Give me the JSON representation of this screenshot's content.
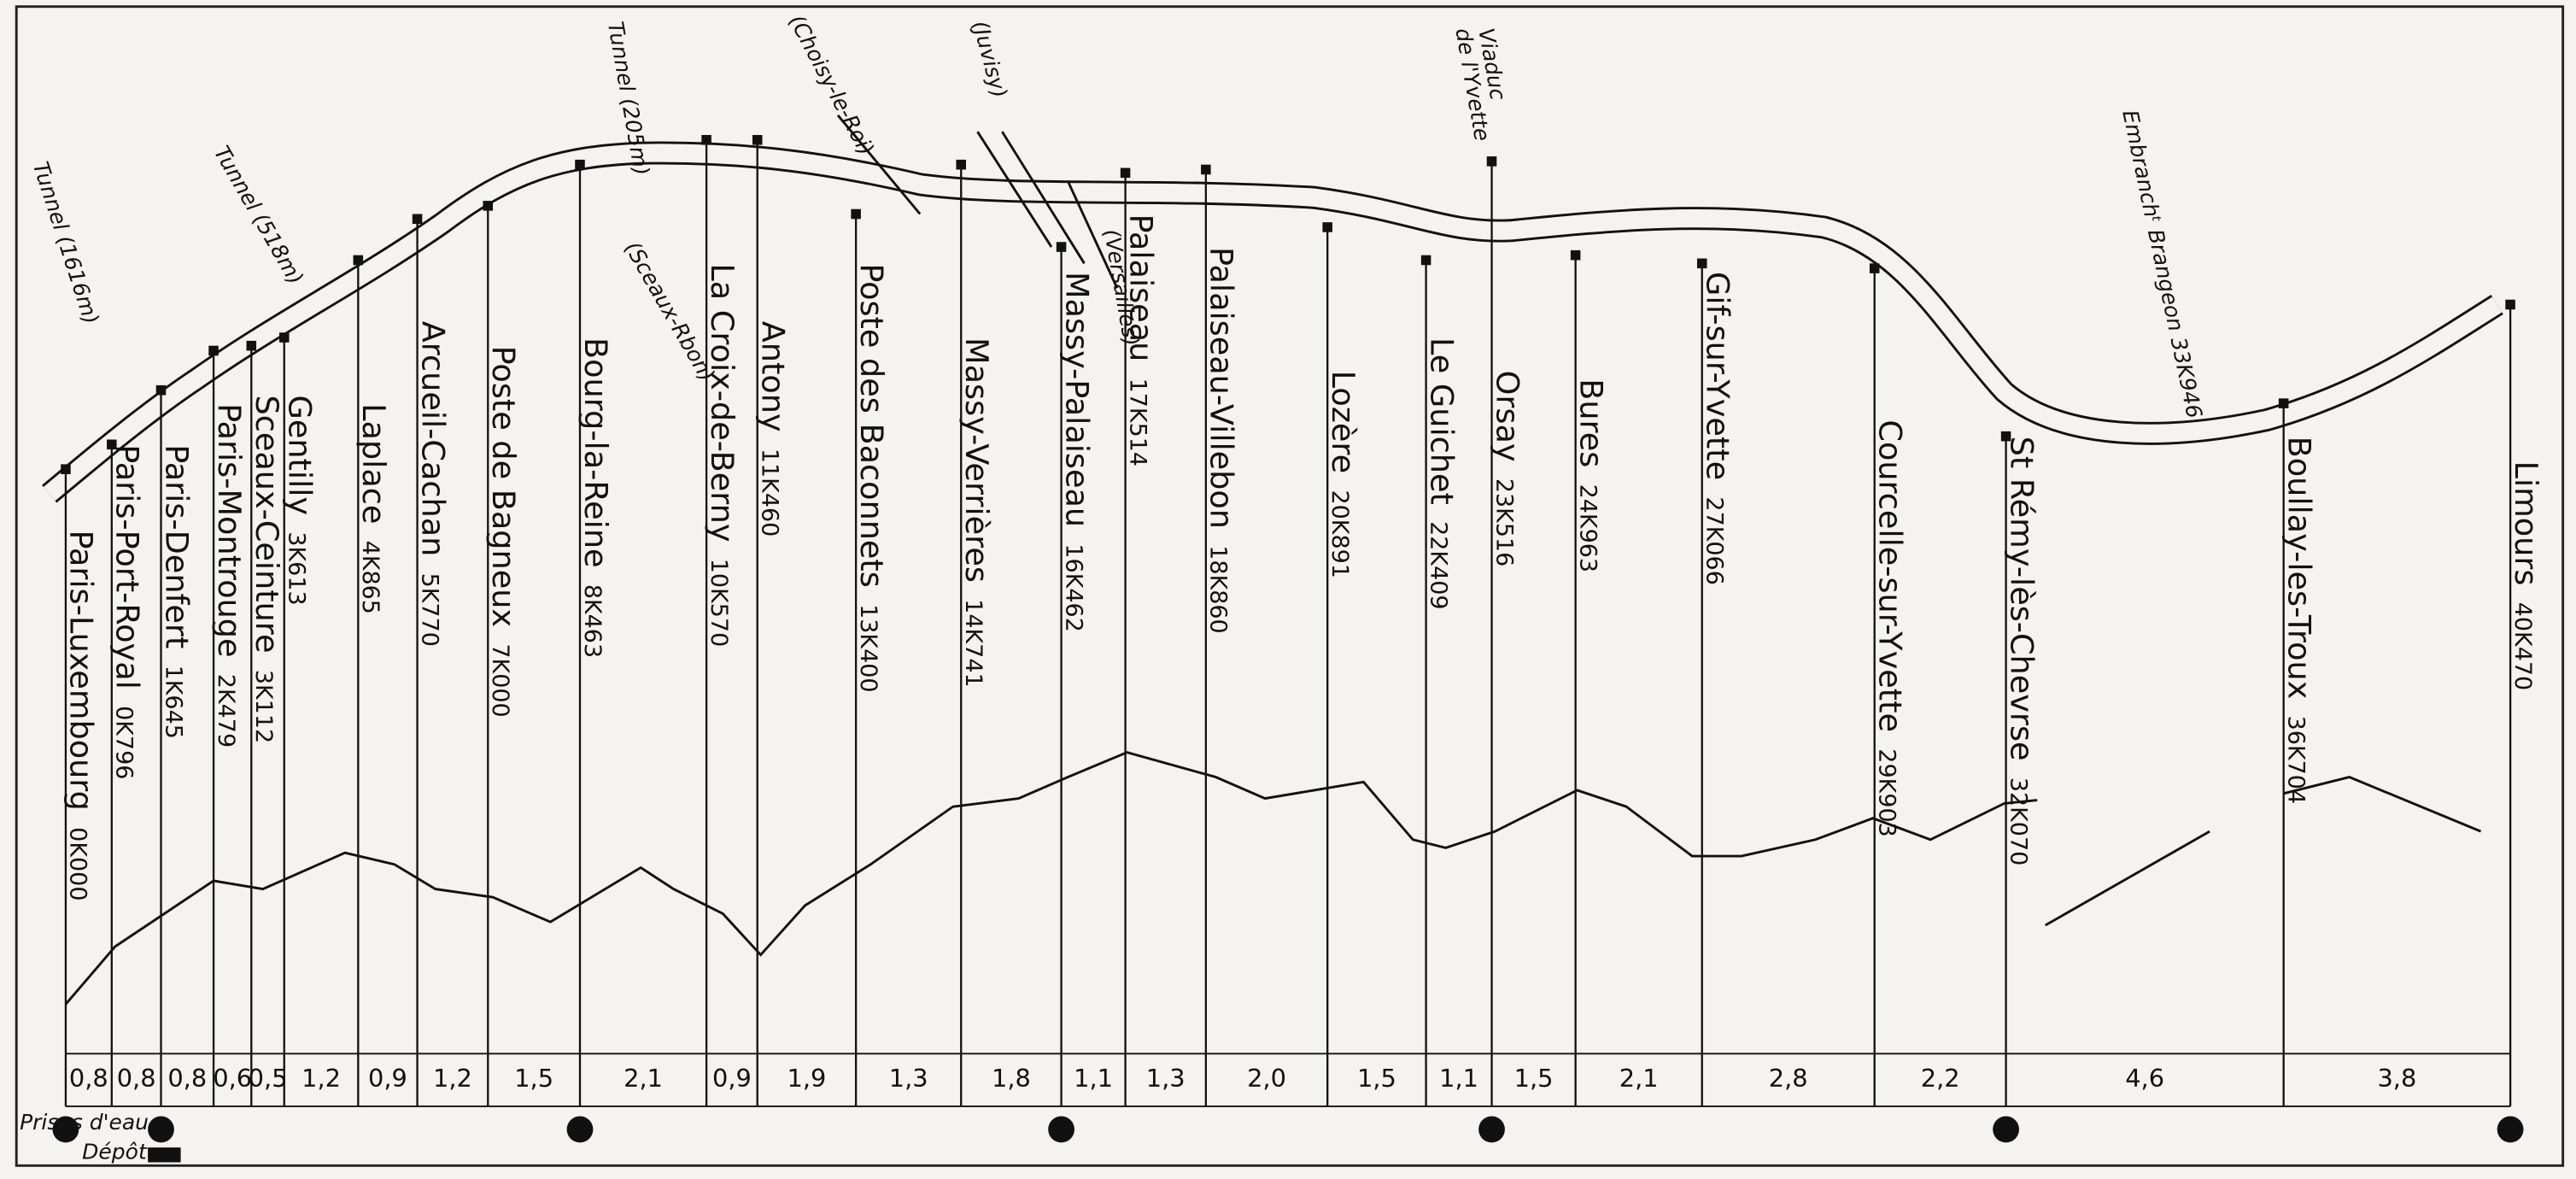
{
  "stations": [
    {
      "name": "Paris-Luxembourg",
      "km": "0K000"
    },
    {
      "name": "Paris-Port-Royal",
      "km": "0K796"
    },
    {
      "name": "Paris-Denfert",
      "km": "1K645"
    },
    {
      "name": "Paris-Montrouge",
      "km": "2K479"
    },
    {
      "name": "Sceaux-Ceinture",
      "km": "3K112"
    },
    {
      "name": "Gentilly",
      "km": "3K613"
    },
    {
      "name": "Laplace",
      "km": "4K865"
    },
    {
      "name": "Arcueil-Cachan",
      "km": "5K770"
    },
    {
      "name": "Poste de Bagneux",
      "km": "7K000"
    },
    {
      "name": "Bourg-la-Reine",
      "km": "8K463"
    },
    {
      "name": "La Croix-de-Berny",
      "km": "10K570"
    },
    {
      "name": "Antony",
      "km": "11K460"
    },
    {
      "name": "Poste des Baconnets",
      "km": "13K400"
    },
    {
      "name": "Massy-Verrières",
      "km": "14K741"
    },
    {
      "name": "Massy-Palaiseau",
      "km": "16K462"
    },
    {
      "name": "Palaiseau",
      "km": "17K514"
    },
    {
      "name": "Palaiseau-Villebon",
      "km": "18K860"
    },
    {
      "name": "Lozère",
      "km": "20K891"
    },
    {
      "name": "Le Guichet",
      "km": "22K409"
    },
    {
      "name": "Orsay",
      "km": "23K516"
    },
    {
      "name": "Bures",
      "km": "24K963"
    },
    {
      "name": "Gif-sur-Yvette",
      "km": "27K066"
    },
    {
      "name": "Courcelle-sur-Yvette",
      "km": "29K903"
    },
    {
      "name": "St Rémy-lès-Chevrse",
      "km": "32K070"
    },
    {
      "name": "Boullay-les-Troux",
      "km": "36K704"
    },
    {
      "name": "Limours",
      "km": "40K470"
    }
  ],
  "distances": [
    "0,8",
    "0,8",
    "0,8",
    "0,6",
    "0,5",
    "1,2",
    "0,9",
    "1,2",
    "1,5",
    "2,1",
    "0,9",
    "1,9",
    "1,3",
    "1,8",
    "1,1",
    "1,3",
    "2,0",
    "1,5",
    "1,1",
    "1,5",
    "2,1",
    "2,8",
    "2,2",
    "4,6",
    "3,8"
  ],
  "annotations": {
    "tunnel1": "Tunnel (1616m)",
    "tunnel2": "Tunnel (518m)",
    "tunnel3": "Tunnel (205m)",
    "sceaux": "(Sceaux-Rbon)",
    "choisy": "(Choisy-le-Roi)",
    "juvisy": "(Juvisy)",
    "versailles": "(Versailles)",
    "viaduc1": "Viaduc",
    "viaduc2": "de l'Yvette",
    "brangeon": "Embranchᵗ Brangeon 33K946"
  },
  "legend": {
    "water": "Prises d'eau",
    "depot": "Dépôt"
  }
}
